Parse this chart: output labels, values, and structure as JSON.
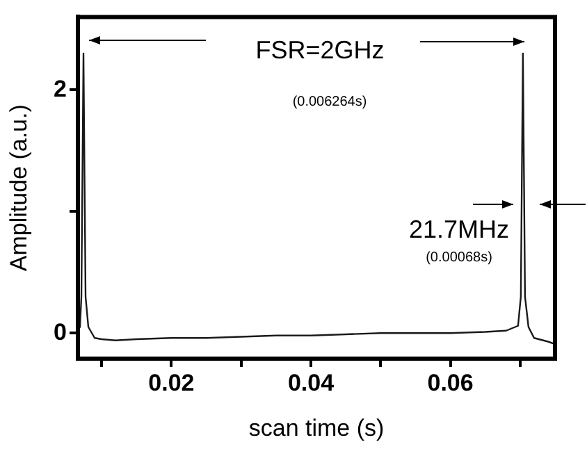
{
  "chart_data": {
    "type": "line",
    "xlabel": "scan time (s)",
    "ylabel": "Amplitude (a.u.)",
    "annotations": [
      "FSR=2GHz",
      "(0.006264s)",
      "21.7MHz",
      "(0.00068s)"
    ],
    "xlim": [
      0.0066,
      0.075
    ],
    "xticks": [
      {
        "value": 0.01,
        "label": null
      },
      0.02,
      {
        "value": 0.03,
        "label": null
      },
      0.04,
      {
        "value": 0.05,
        "label": null
      },
      0.06,
      {
        "value": 0.07,
        "label": null
      }
    ],
    "ylim": [
      -0.21,
      2.6
    ],
    "yticks": [
      0,
      {
        "value": 1,
        "label": null
      },
      2
    ],
    "grid": false,
    "legend": false,
    "marker": "none",
    "line_style": "solid",
    "x": [
      0.0066,
      0.0069,
      0.0071,
      0.0074,
      0.0077,
      0.0081,
      0.009,
      0.01,
      0.012,
      0.015,
      0.02,
      0.025,
      0.03,
      0.035,
      0.04,
      0.045,
      0.05,
      0.055,
      0.06,
      0.065,
      0.068,
      0.0697,
      0.0701,
      0.0704,
      0.0707,
      0.0712,
      0.072,
      0.074,
      0.075
    ],
    "series": [
      {
        "color": "#1a1a1a",
        "values": [
          0.02,
          0.05,
          0.3,
          2.3,
          0.3,
          0.05,
          -0.04,
          -0.05,
          -0.06,
          -0.05,
          -0.04,
          -0.04,
          -0.03,
          -0.02,
          -0.02,
          -0.01,
          0.0,
          0.0,
          0.0,
          0.01,
          0.02,
          0.06,
          0.3,
          2.3,
          0.3,
          0.05,
          -0.04,
          -0.07,
          -0.09
        ]
      }
    ]
  }
}
